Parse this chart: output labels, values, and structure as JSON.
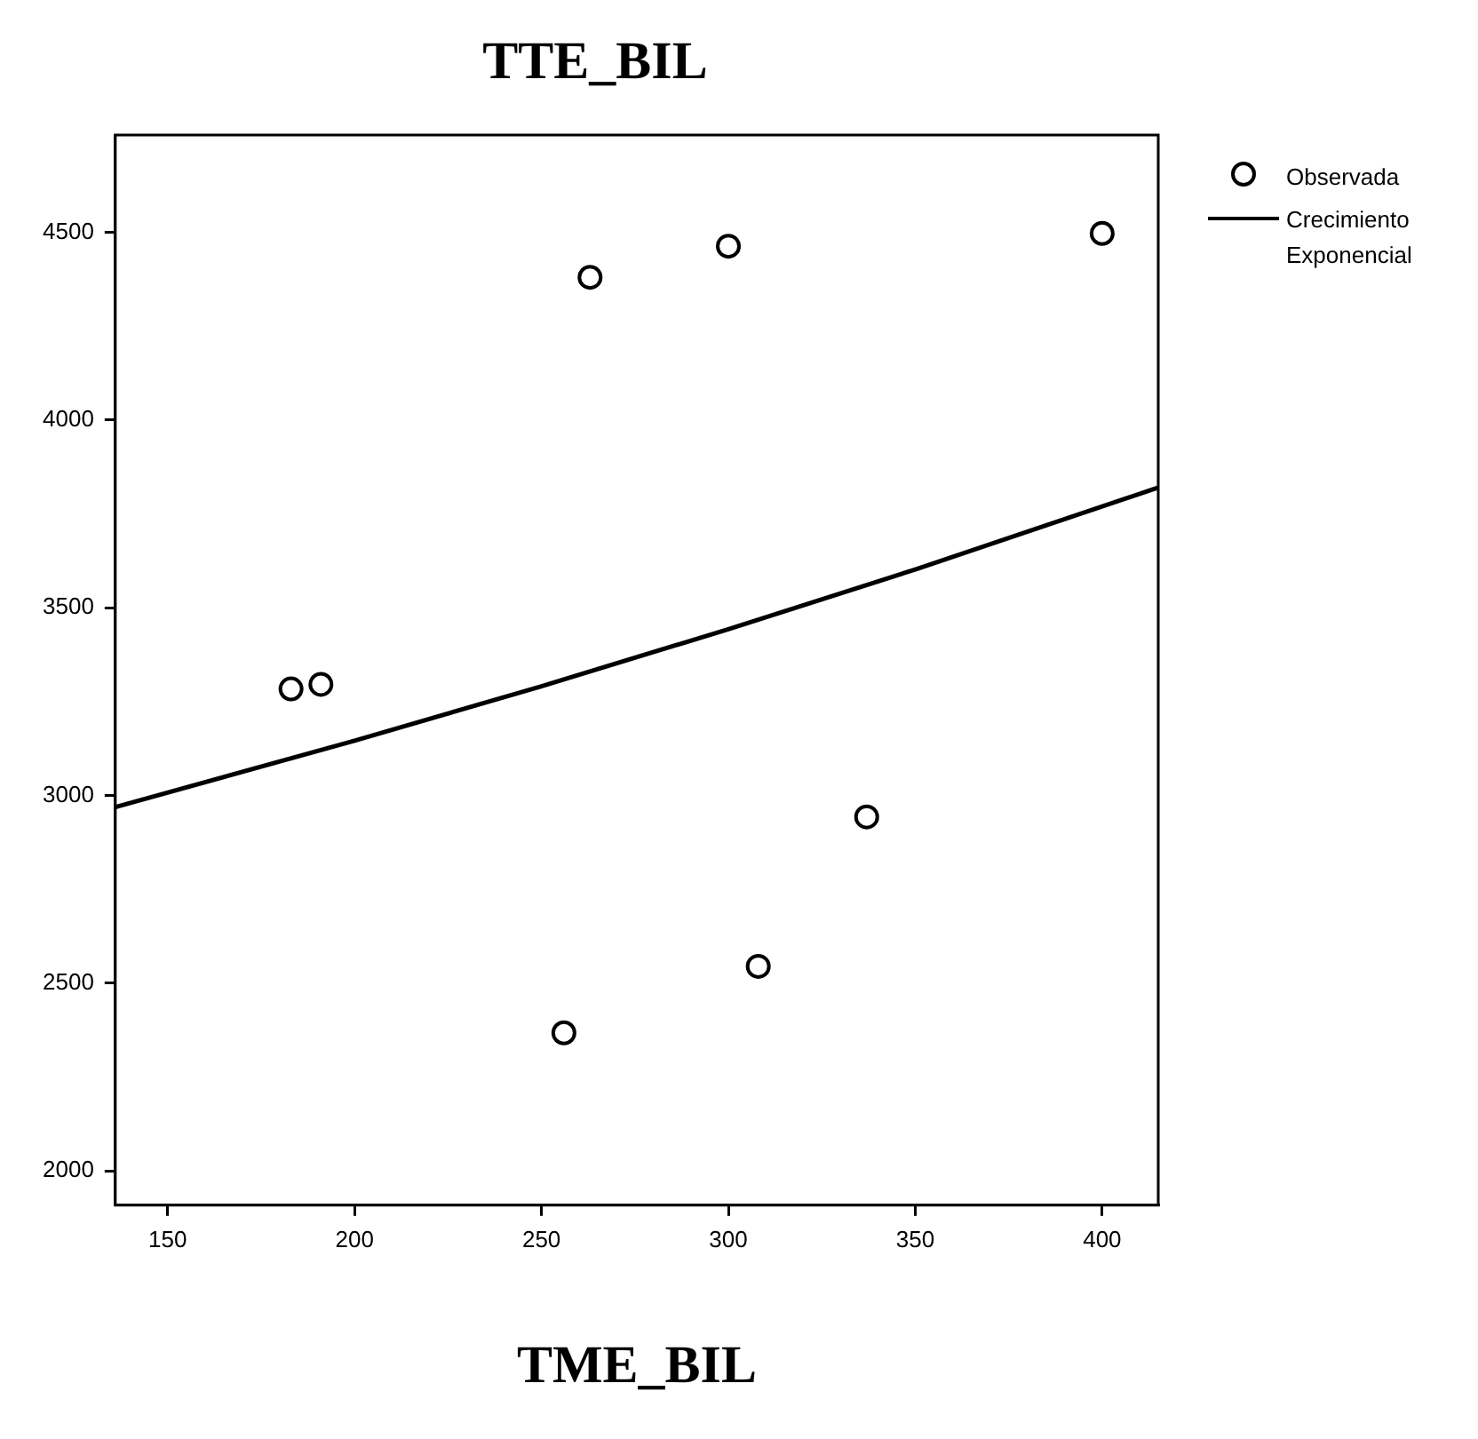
{
  "chart_data": {
    "type": "scatter",
    "title": "TTE_BIL",
    "xlabel": "TME_BIL",
    "xlim": [
      136,
      415
    ],
    "xticks": [
      150,
      200,
      250,
      300,
      350,
      400
    ],
    "ylim": [
      1909,
      4759
    ],
    "yticks": [
      2000,
      2500,
      3000,
      3500,
      4000,
      4500
    ],
    "grid": false,
    "legend": "top right",
    "series": [
      {
        "name": "Observada",
        "marker": "circle",
        "color": "#000000",
        "x": [
          183,
          191,
          263,
          300,
          400,
          337,
          308,
          256
        ],
        "values": [
          3284,
          3296,
          4380,
          4463,
          4497,
          2943,
          2545,
          2368
        ]
      },
      {
        "name": "Crecimiento Exponencial",
        "type": "line",
        "marker": "none",
        "line_style": "solid",
        "color": "#000000",
        "x": [
          136,
          200,
          250,
          300,
          350,
          415
        ],
        "values": [
          2969,
          3146,
          3291,
          3443,
          3602,
          3820
        ]
      }
    ]
  }
}
